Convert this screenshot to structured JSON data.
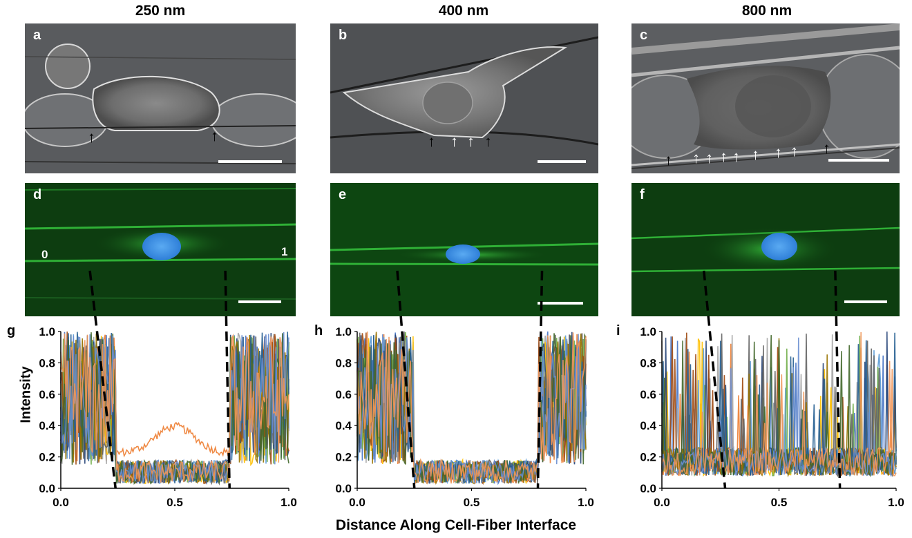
{
  "columns": [
    {
      "title": "250 nm"
    },
    {
      "title": "400 nm"
    },
    {
      "title": "800 nm"
    }
  ],
  "panels": {
    "top": [
      "a",
      "b",
      "c"
    ],
    "middle": [
      "d",
      "e",
      "f"
    ],
    "charts": [
      "g",
      "h",
      "i"
    ]
  },
  "panel_d_end_labels": {
    "start": "0",
    "end": "1"
  },
  "axis": {
    "ylabel": "Intensity",
    "xlabel": "Distance Along Cell-Fiber Interface"
  },
  "colors": {
    "series": [
      "#4472c4",
      "#ed7d31",
      "#a5a5a5",
      "#ffc000",
      "#5b9bd5",
      "#70ad47",
      "#264478",
      "#9e480e",
      "#636363",
      "#997300",
      "#255e91",
      "#43682b",
      "#698ed0",
      "#f1975a"
    ],
    "fluor_green": "#1fae2a",
    "nucleus_blue": "#3d8fe6"
  },
  "arrows": {
    "a": [
      "black",
      "black"
    ],
    "b": [
      "black",
      "white",
      "white",
      "black"
    ],
    "c": [
      "black",
      "white",
      "white",
      "white",
      "white",
      "white",
      "white",
      "white",
      "black"
    ]
  },
  "chart_data": [
    {
      "type": "line",
      "panel": "g",
      "xlim": [
        0.0,
        1.0
      ],
      "ylim": [
        0.0,
        1.0
      ],
      "xticks": [
        "0.0",
        "0.5",
        "1.0"
      ],
      "yticks": [
        "0.0",
        "0.2",
        "0.4",
        "0.6",
        "0.8",
        "1.0"
      ],
      "ylabel": "Intensity",
      "xlabel": "Distance Along Cell-Fiber Interface",
      "cell_boundaries": [
        0.24,
        0.74
      ],
      "series_count": 14,
      "profile": "high (0.3-1.0) outside cell boundaries, low (0.05-0.2) inside; one series peaks near 0.37 at x=0.5"
    },
    {
      "type": "line",
      "panel": "h",
      "xlim": [
        0.0,
        1.0
      ],
      "ylim": [
        0.0,
        1.0
      ],
      "xticks": [
        "0.0",
        "0.5",
        "1.0"
      ],
      "yticks": [
        "0.0",
        "0.2",
        "0.4",
        "0.6",
        "0.8",
        "1.0"
      ],
      "cell_boundaries": [
        0.25,
        0.79
      ],
      "series_count": 14,
      "profile": "high (0.3-1.0) outside cell boundaries, low (0.02-0.2) inside"
    },
    {
      "type": "line",
      "panel": "i",
      "xlim": [
        0.0,
        1.0
      ],
      "ylim": [
        0.0,
        1.0
      ],
      "xticks": [
        "0.0",
        "0.5",
        "1.0"
      ],
      "yticks": [
        "0.0",
        "0.2",
        "0.4",
        "0.6",
        "0.8",
        "1.0"
      ],
      "cell_boundaries": [
        0.27,
        0.76
      ],
      "series_count": 14,
      "profile": "spiky peaks up to 1.0 across the whole interface, baseline 0.05-0.3"
    }
  ]
}
